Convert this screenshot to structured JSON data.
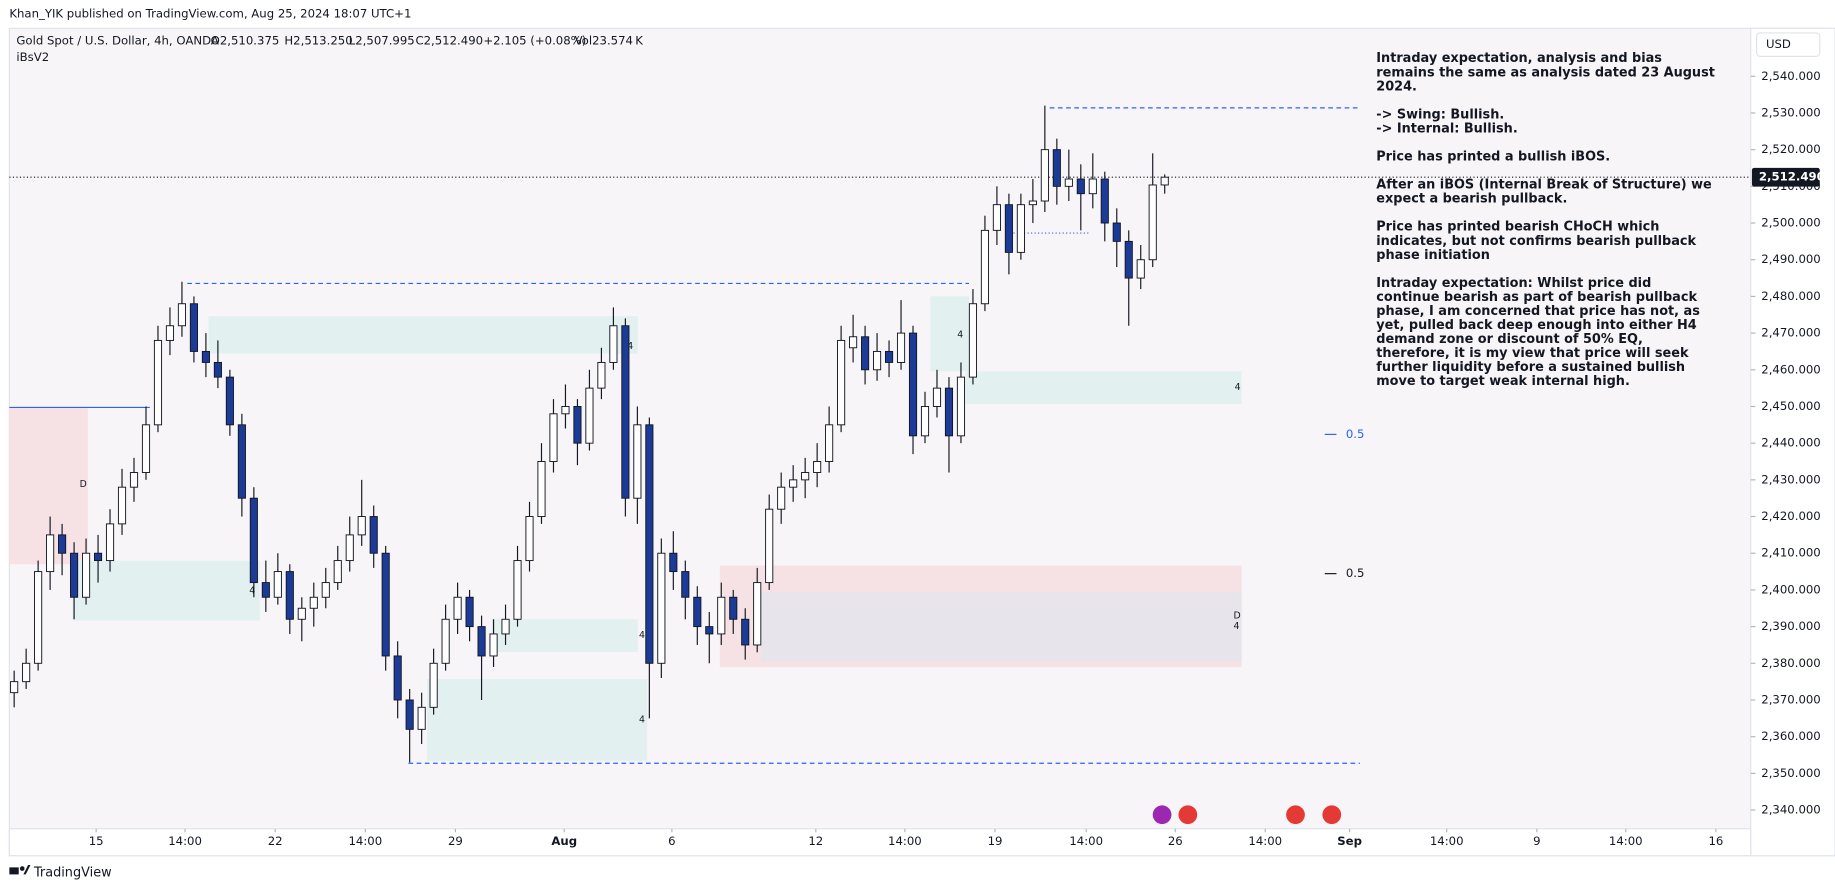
{
  "chart_data": {
    "type": "candlestick",
    "header": "Khan_YIK published on TradingView.com, Aug 25, 2024 18:07 UTC+1",
    "title": "Gold Spot / U.S. Dollar, 4h, OANDA",
    "legend": [
      "O2,510.375",
      "H2,513.250",
      "L2,507.995",
      "C2,512.490",
      "+2.105 (+0.08%)",
      "Vol23.574 K"
    ],
    "indicator": "iBsV2",
    "currency": "USD",
    "footer": "TradingView",
    "up_color": "#ffffff",
    "down_color": "#1c3b96",
    "grid": false,
    "last_price": {
      "value": 2512.49,
      "label": "2,512.490"
    },
    "zone_labels": [
      "D",
      "4",
      "4",
      "4",
      "4",
      "4",
      "4",
      "D",
      "4"
    ],
    "fib_labels": [
      "0.5",
      "0.5"
    ],
    "annotation": [
      [
        "Intraday expectation, analysis and bias",
        "remains the same as analysis dated 23 August",
        "2024."
      ],
      [
        "-> Swing:  Bullish.",
        "-> Internal:  Bullish."
      ],
      [
        "Price has printed a bullish iBOS."
      ],
      [
        "After an iBOS (Internal Break of Structure) we",
        "expect a bearish pullback."
      ],
      [
        "Price has printed bearish CHoCH which",
        "indicates, but not confirms bearish pullback",
        "phase initiation"
      ],
      [
        "Intraday expectation: Whilst price did",
        "continue bearish as part of bearish pullback",
        "phase, I am concerned that price has not, as",
        "yet, pulled back deep enough into either H4",
        "demand zone or discount of 50% EQ,",
        "therefore, it is my view that price will seek",
        "further liquidity before a sustained bullish",
        "move to target weak internal high."
      ]
    ],
    "xlim": [
      -0.4,
      144.8
    ],
    "ylim": [
      2334.9,
      2551.8
    ],
    "xticks": [
      {
        "value": 6.84,
        "label": "15"
      },
      {
        "value": 14.26,
        "label": "14:00"
      },
      {
        "value": 21.78,
        "label": "22"
      },
      {
        "value": 29.3,
        "label": "14:00"
      },
      {
        "value": 36.82,
        "label": "29"
      },
      {
        "value": 45.9,
        "label": "Aug"
      },
      {
        "value": 54.88,
        "label": "6"
      },
      {
        "value": 66.89,
        "label": "12"
      },
      {
        "value": 74.32,
        "label": "14:00"
      },
      {
        "value": 81.84,
        "label": "19"
      },
      {
        "value": 89.45,
        "label": "14:00"
      },
      {
        "value": 96.88,
        "label": "26"
      },
      {
        "value": 104.39,
        "label": "14:00"
      },
      {
        "value": 111.43,
        "label": "Sep"
      },
      {
        "value": 119.53,
        "label": "14:00"
      },
      {
        "value": 127.05,
        "label": "9"
      },
      {
        "value": 134.47,
        "label": "14:00"
      },
      {
        "value": 141.99,
        "label": "16"
      }
    ],
    "yticks": [
      {
        "value": 2340,
        "label": "2,340.000"
      },
      {
        "value": 2350,
        "label": "2,350.000"
      },
      {
        "value": 2360,
        "label": "2,360.000"
      },
      {
        "value": 2370,
        "label": "2,370.000"
      },
      {
        "value": 2380,
        "label": "2,380.000"
      },
      {
        "value": 2390,
        "label": "2,390.000"
      },
      {
        "value": 2400,
        "label": "2,400.000"
      },
      {
        "value": 2410,
        "label": "2,410.000"
      },
      {
        "value": 2420,
        "label": "2,420.000"
      },
      {
        "value": 2430,
        "label": "2,430.000"
      },
      {
        "value": 2440,
        "label": "2,440.000"
      },
      {
        "value": 2450,
        "label": "2,450.000"
      },
      {
        "value": 2460,
        "label": "2,460.000"
      },
      {
        "value": 2470,
        "label": "2,470.000"
      },
      {
        "value": 2480,
        "label": "2,480.000"
      },
      {
        "value": 2490,
        "label": "2,490.000"
      },
      {
        "value": 2500,
        "label": "2,500.000"
      },
      {
        "value": 2510,
        "label": "2,510.000"
      },
      {
        "value": 2520,
        "label": "2,520.000"
      },
      {
        "value": 2530,
        "label": "2,530.000"
      },
      {
        "value": 2540,
        "label": "2,540.000"
      }
    ],
    "ohlc": [
      [
        2372,
        2378,
        2368,
        2375
      ],
      [
        2375,
        2384,
        2373,
        2380
      ],
      [
        2380,
        2408,
        2378,
        2405
      ],
      [
        2405,
        2420,
        2400,
        2415
      ],
      [
        2415,
        2418,
        2404,
        2410
      ],
      [
        2410,
        2413,
        2392,
        2398
      ],
      [
        2398,
        2414,
        2396,
        2410
      ],
      [
        2410,
        2415,
        2402,
        2408
      ],
      [
        2408,
        2422,
        2405,
        2418
      ],
      [
        2418,
        2433,
        2415,
        2428
      ],
      [
        2428,
        2436,
        2424,
        2432
      ],
      [
        2432,
        2450,
        2430,
        2445
      ],
      [
        2445,
        2472,
        2443,
        2468
      ],
      [
        2468,
        2477,
        2464,
        2472
      ],
      [
        2472,
        2484,
        2469,
        2478
      ],
      [
        2478,
        2480,
        2462,
        2465
      ],
      [
        2465,
        2470,
        2458,
        2462
      ],
      [
        2462,
        2468,
        2455,
        2458
      ],
      [
        2458,
        2460,
        2442,
        2445
      ],
      [
        2445,
        2448,
        2420,
        2425
      ],
      [
        2425,
        2428,
        2398,
        2402
      ],
      [
        2402,
        2408,
        2394,
        2398
      ],
      [
        2398,
        2410,
        2396,
        2405
      ],
      [
        2405,
        2407,
        2388,
        2392
      ],
      [
        2392,
        2398,
        2386,
        2395
      ],
      [
        2395,
        2402,
        2390,
        2398
      ],
      [
        2398,
        2406,
        2395,
        2402
      ],
      [
        2402,
        2412,
        2400,
        2408
      ],
      [
        2408,
        2420,
        2405,
        2415
      ],
      [
        2415,
        2430,
        2412,
        2420
      ],
      [
        2420,
        2423,
        2406,
        2410
      ],
      [
        2410,
        2412,
        2378,
        2382
      ],
      [
        2382,
        2386,
        2365,
        2370
      ],
      [
        2370,
        2373,
        2353,
        2362
      ],
      [
        2362,
        2372,
        2358,
        2368
      ],
      [
        2368,
        2384,
        2366,
        2380
      ],
      [
        2380,
        2396,
        2378,
        2392
      ],
      [
        2392,
        2402,
        2388,
        2398
      ],
      [
        2398,
        2400,
        2386,
        2390
      ],
      [
        2390,
        2393,
        2370,
        2382
      ],
      [
        2382,
        2392,
        2379,
        2388
      ],
      [
        2388,
        2396,
        2385,
        2392
      ],
      [
        2392,
        2412,
        2390,
        2408
      ],
      [
        2408,
        2424,
        2405,
        2420
      ],
      [
        2420,
        2440,
        2418,
        2435
      ],
      [
        2435,
        2452,
        2432,
        2448
      ],
      [
        2448,
        2456,
        2444,
        2450
      ],
      [
        2450,
        2452,
        2434,
        2440
      ],
      [
        2440,
        2460,
        2438,
        2455
      ],
      [
        2455,
        2466,
        2452,
        2462
      ],
      [
        2462,
        2477,
        2460,
        2472
      ],
      [
        2472,
        2474,
        2420,
        2425
      ],
      [
        2425,
        2450,
        2418,
        2445
      ],
      [
        2445,
        2447,
        2365,
        2380
      ],
      [
        2380,
        2414,
        2376,
        2410
      ],
      [
        2410,
        2416,
        2400,
        2405
      ],
      [
        2405,
        2408,
        2392,
        2398
      ],
      [
        2398,
        2401,
        2385,
        2390
      ],
      [
        2390,
        2394,
        2380,
        2388
      ],
      [
        2388,
        2402,
        2385,
        2398
      ],
      [
        2398,
        2400,
        2388,
        2392
      ],
      [
        2392,
        2395,
        2381,
        2385
      ],
      [
        2385,
        2406,
        2383,
        2402
      ],
      [
        2402,
        2426,
        2400,
        2422
      ],
      [
        2422,
        2432,
        2418,
        2428
      ],
      [
        2428,
        2434,
        2424,
        2430
      ],
      [
        2430,
        2436,
        2425,
        2432
      ],
      [
        2432,
        2440,
        2428,
        2435
      ],
      [
        2435,
        2450,
        2432,
        2445
      ],
      [
        2445,
        2472,
        2443,
        2468
      ],
      [
        2466,
        2475,
        2462,
        2469
      ],
      [
        2469,
        2472,
        2456,
        2460
      ],
      [
        2460,
        2470,
        2457,
        2465
      ],
      [
        2465,
        2468,
        2458,
        2462
      ],
      [
        2462,
        2479,
        2460,
        2470
      ],
      [
        2470,
        2472,
        2437,
        2442
      ],
      [
        2442,
        2454,
        2440,
        2450
      ],
      [
        2450,
        2460,
        2447,
        2455
      ],
      [
        2455,
        2458,
        2432,
        2442
      ],
      [
        2442,
        2462,
        2440,
        2458
      ],
      [
        2458,
        2482,
        2456,
        2478
      ],
      [
        2478,
        2502,
        2476,
        2498
      ],
      [
        2498,
        2510,
        2494,
        2505
      ],
      [
        2505,
        2508,
        2486,
        2492
      ],
      [
        2492,
        2508,
        2490,
        2505
      ],
      [
        2505,
        2512,
        2500,
        2506
      ],
      [
        2506,
        2532,
        2503,
        2520
      ],
      [
        2520,
        2523,
        2505,
        2510
      ],
      [
        2510,
        2520,
        2506,
        2512
      ],
      [
        2512,
        2516,
        2498,
        2508
      ],
      [
        2508,
        2519,
        2504,
        2512
      ],
      [
        2512,
        2514,
        2495,
        2500
      ],
      [
        2500,
        2504,
        2488,
        2495
      ],
      [
        2495,
        2498,
        2472,
        2485
      ],
      [
        2485,
        2494,
        2482,
        2490
      ],
      [
        2490,
        2519,
        2488,
        2510.375
      ],
      [
        2510.375,
        2513.25,
        2507.995,
        2512.49
      ]
    ]
  }
}
